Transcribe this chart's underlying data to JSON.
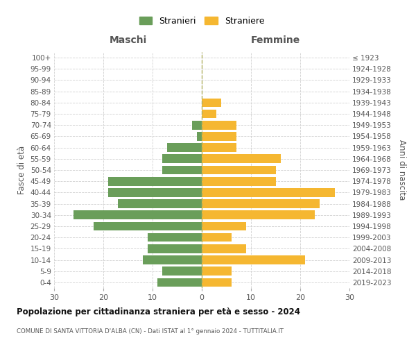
{
  "age_groups": [
    "0-4",
    "5-9",
    "10-14",
    "15-19",
    "20-24",
    "25-29",
    "30-34",
    "35-39",
    "40-44",
    "45-49",
    "50-54",
    "55-59",
    "60-64",
    "65-69",
    "70-74",
    "75-79",
    "80-84",
    "85-89",
    "90-94",
    "95-99",
    "100+"
  ],
  "birth_years": [
    "2019-2023",
    "2014-2018",
    "2009-2013",
    "2004-2008",
    "1999-2003",
    "1994-1998",
    "1989-1993",
    "1984-1988",
    "1979-1983",
    "1974-1978",
    "1969-1973",
    "1964-1968",
    "1959-1963",
    "1954-1958",
    "1949-1953",
    "1944-1948",
    "1939-1943",
    "1934-1938",
    "1929-1933",
    "1924-1928",
    "≤ 1923"
  ],
  "maschi": [
    9,
    8,
    12,
    11,
    11,
    22,
    26,
    17,
    19,
    19,
    8,
    8,
    7,
    1,
    2,
    0,
    0,
    0,
    0,
    0,
    0
  ],
  "femmine": [
    6,
    6,
    21,
    9,
    6,
    9,
    23,
    24,
    27,
    15,
    15,
    16,
    7,
    7,
    7,
    3,
    4,
    0,
    0,
    0,
    0
  ],
  "color_maschi": "#6a9e5a",
  "color_femmine": "#f5b731",
  "title": "Popolazione per cittadinanza straniera per età e sesso - 2024",
  "subtitle": "COMUNE DI SANTA VITTORIA D'ALBA (CN) - Dati ISTAT al 1° gennaio 2024 - TUTTITALIA.IT",
  "label_maschi": "Stranieri",
  "label_femmine": "Straniere",
  "header_left": "Maschi",
  "header_right": "Femmine",
  "ylabel_left": "Fasce di età",
  "ylabel_right": "Anni di nascita",
  "xlim": 30,
  "bg_color": "#ffffff",
  "grid_color": "#d0d0d0"
}
